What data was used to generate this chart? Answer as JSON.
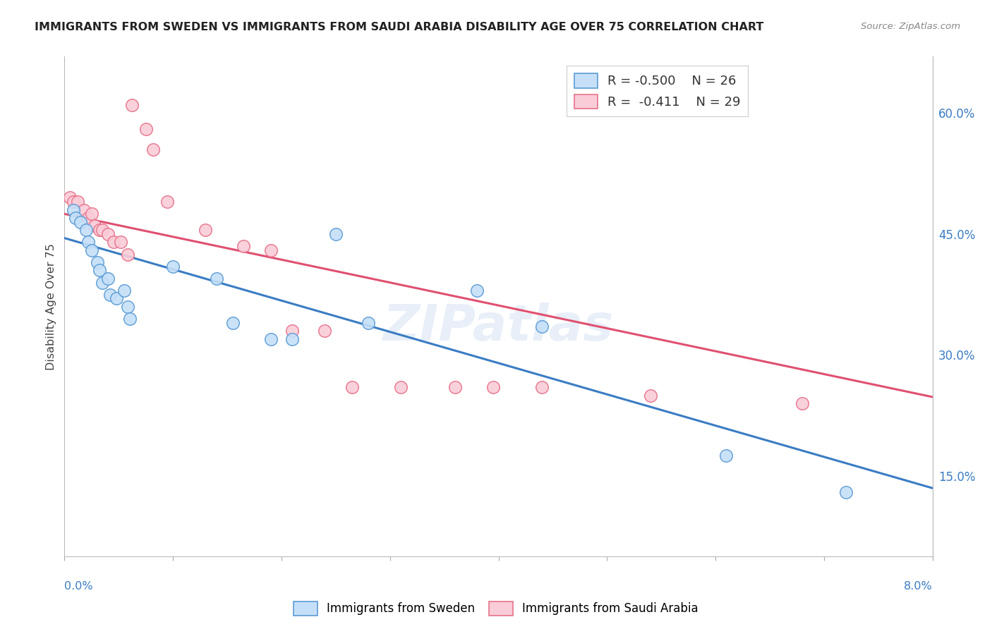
{
  "title": "IMMIGRANTS FROM SWEDEN VS IMMIGRANTS FROM SAUDI ARABIA DISABILITY AGE OVER 75 CORRELATION CHART",
  "source": "Source: ZipAtlas.com",
  "ylabel": "Disability Age Over 75",
  "ytick_vals": [
    0.15,
    0.3,
    0.45,
    0.6
  ],
  "ytick_labels": [
    "15.0%",
    "30.0%",
    "45.0%",
    "60.0%"
  ],
  "xrange": [
    0.0,
    0.08
  ],
  "yrange": [
    0.05,
    0.67
  ],
  "sweden_fill": "#c5dff8",
  "sweden_edge": "#5b9bd5",
  "saudi_fill": "#f9ccd8",
  "saudi_edge": "#e8728a",
  "sweden_trend_color": "#3a7cc4",
  "saudi_trend_color": "#e05070",
  "sweden_R": -0.5,
  "sweden_N": 26,
  "saudi_R": -0.411,
  "saudi_N": 29,
  "sweden_trend_x0": 0.0,
  "sweden_trend_y0": 0.445,
  "sweden_trend_x1": 0.08,
  "sweden_trend_y1": 0.135,
  "saudi_trend_x0": 0.0,
  "saudi_trend_y0": 0.475,
  "saudi_trend_x1": 0.08,
  "saudi_trend_y1": 0.248,
  "sweden_x": [
    0.0008,
    0.001,
    0.0015,
    0.002,
    0.0022,
    0.0025,
    0.003,
    0.0032,
    0.0035,
    0.004,
    0.0042,
    0.0048,
    0.0055,
    0.0058,
    0.006,
    0.01,
    0.014,
    0.0155,
    0.019,
    0.021,
    0.025,
    0.028,
    0.038,
    0.044,
    0.061,
    0.072
  ],
  "sweden_y": [
    0.48,
    0.47,
    0.465,
    0.455,
    0.44,
    0.43,
    0.415,
    0.405,
    0.39,
    0.395,
    0.375,
    0.37,
    0.38,
    0.36,
    0.345,
    0.41,
    0.395,
    0.34,
    0.32,
    0.32,
    0.45,
    0.34,
    0.38,
    0.335,
    0.175,
    0.13
  ],
  "saudi_x": [
    0.0005,
    0.0008,
    0.0012,
    0.0018,
    0.0022,
    0.0025,
    0.0028,
    0.0032,
    0.0035,
    0.004,
    0.0045,
    0.0052,
    0.0058,
    0.0062,
    0.0075,
    0.0082,
    0.0095,
    0.013,
    0.0165,
    0.019,
    0.021,
    0.024,
    0.0265,
    0.031,
    0.036,
    0.0395,
    0.044,
    0.054,
    0.068
  ],
  "saudi_y": [
    0.495,
    0.49,
    0.49,
    0.48,
    0.47,
    0.475,
    0.46,
    0.455,
    0.455,
    0.45,
    0.44,
    0.44,
    0.425,
    0.61,
    0.58,
    0.555,
    0.49,
    0.455,
    0.435,
    0.43,
    0.33,
    0.33,
    0.26,
    0.26,
    0.26,
    0.26,
    0.26,
    0.25,
    0.24
  ],
  "watermark": "ZIPatlas",
  "bg": "#ffffff",
  "grid_color": "#e0e0e0"
}
